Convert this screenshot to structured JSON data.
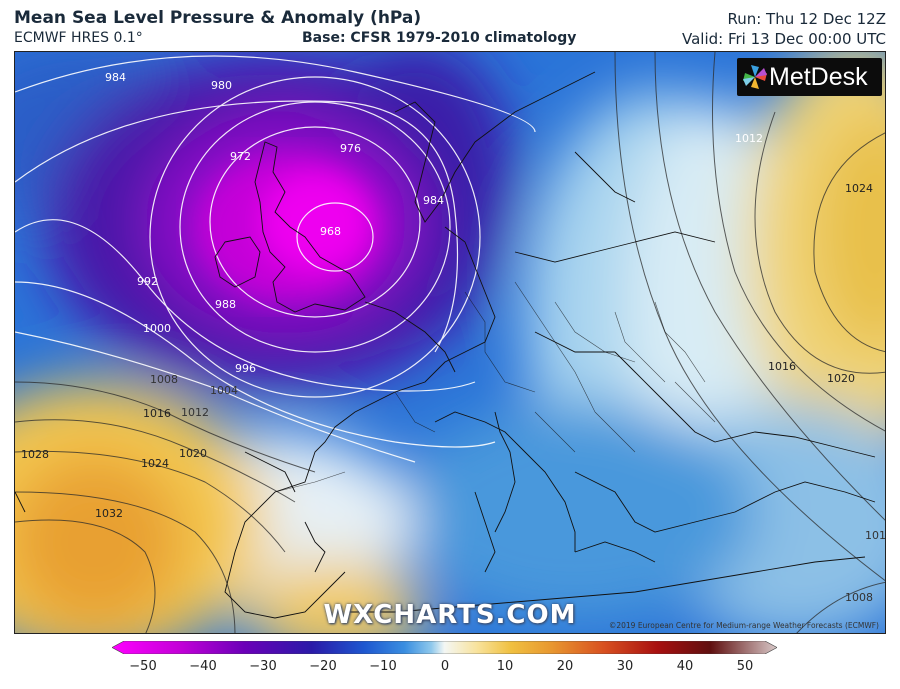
{
  "header": {
    "title": "Mean Sea Level Pressure & Anomaly (hPa)",
    "model": "ECMWF HRES 0.1°",
    "base": "Base: CFSR 1979-2010 climatology",
    "run": "Run: Thu 12 Dec 12Z",
    "valid": "Valid: Fri 13 Dec 00:00 UTC"
  },
  "logo": {
    "text": "MetDesk"
  },
  "watermark": "WXCHARTS.COM",
  "copyright": "©2019 European Centre for Medium-range Weather Forecasts (ECMWF)",
  "isobar_labels": [
    "984",
    "980",
    "976",
    "972",
    "968",
    "984",
    "992",
    "988",
    "1000",
    "996",
    "1004",
    "1008",
    "1012",
    "1016",
    "1020",
    "1024",
    "1028",
    "1032",
    "1012",
    "1024",
    "1016",
    "1020",
    "1016",
    "1008"
  ],
  "colorbar": {
    "ticks": [
      "−50",
      "−40",
      "−30",
      "−20",
      "−10",
      "0",
      "10",
      "20",
      "30",
      "40",
      "50"
    ],
    "colors": [
      "#ff00ff",
      "#c400d8",
      "#6a00b8",
      "#2a1aa8",
      "#1e58d0",
      "#3a8ee0",
      "#8ec8ec",
      "#f4f7f4",
      "#f8e29a",
      "#f0c040",
      "#e89830",
      "#d85020",
      "#a81010",
      "#601010",
      "#d8c8c8"
    ]
  },
  "icons": {
    "logo": "metdesk-pinwheel-icon"
  }
}
